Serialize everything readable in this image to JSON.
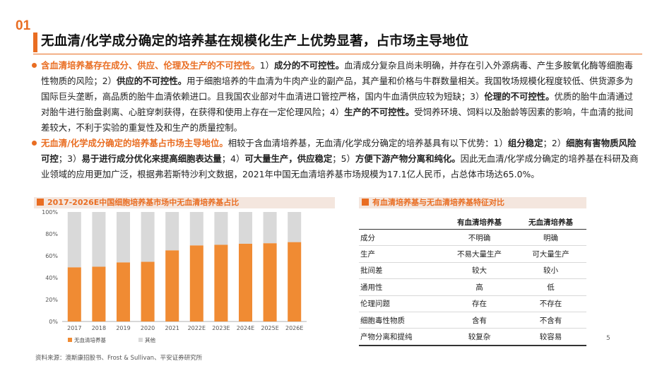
{
  "section_number": "01",
  "title": "无血清/化学成分确定的培养基在规模化生产上优势显著，占市场主导地位",
  "paragraph1": {
    "lead": "含血清培养基存在成分、供应、伦理及生产的不可控性。",
    "n1": "1）",
    "h1": "成分的不可控性。",
    "t1": "血清成分复杂且尚未明确，并存在引入外源病毒、产生多胺氧化酶等细胞毒性物质的风险；2）",
    "h2": "供应的不可控性。",
    "t2": "用于细胞培养的牛血清为牛肉产业的副产品，其产量和价格与牛群数量相关。我国牧场规模化程度较低、供货源多为国际巨头垄断，高品质的胎牛血清依赖进口。且我国农业部对牛血清进口管控严格，国内牛血清供应较为短缺；3）",
    "h3": "伦理的不可控性。",
    "t3": "优质的胎牛血清通过对胎牛进行胎盘剥离、心脏穿刺获得，在获得和使用上存在一定伦理风险；4）",
    "h4": "生产的不可控性。",
    "t4": "受饲养环境、饲料以及胎龄等因素的影响，牛血清的批间差较大，不利于实验的重复性及和生产的质量控制。"
  },
  "paragraph2": {
    "lead": "无血清/化学成分确定的培养基占市场主导地位。",
    "t0": "相较于含血清培养基，无血清/化学成分确定的培养基具有以下优势：1）",
    "h1": "组分稳定",
    "t1": "；2）",
    "h2": "细胞有害物质风险可控",
    "t2": "；3）",
    "h3": "易于进行成分优化来提高细胞表达量",
    "t3": "；4）",
    "h4": "可大量生产，供应稳定",
    "t4": "；5）",
    "h5": "方便下游产物分离和纯化。",
    "t5": "因此无血清/化学成分确定的培养基在科研及商业领域的应用更加广泛，根据弗若斯特沙利文数据，2021年中国无血清培养基市场规模为17.1亿人民币，占总体市场达65.0%。"
  },
  "chart_heading": "2017-2026E中国细胞培养基市场中无血清培养基占比",
  "table_heading": "有血清培养基与无血清培养基特征对比",
  "chart_data": {
    "type": "bar",
    "stacked": true,
    "categories": [
      "2017",
      "2018",
      "2019",
      "2020",
      "2021",
      "2022E",
      "2023E",
      "2024E",
      "2025E",
      "2026E"
    ],
    "series": [
      {
        "name": "无血清培养基",
        "color": "#f08b33",
        "values": [
          49.5,
          50,
          54,
          54.5,
          65,
          69.5,
          70,
          71,
          71.5,
          72.5
        ]
      },
      {
        "name": "其他",
        "color": "#d9d9d9",
        "values": [
          50.5,
          50,
          46,
          45.5,
          35,
          30.5,
          30,
          29,
          28.5,
          27.5
        ]
      }
    ],
    "ylim": [
      0,
      100
    ],
    "yticks": [
      "0%",
      "20%",
      "40%",
      "60%",
      "80%",
      "100%"
    ],
    "legend_position": "bottom-left"
  },
  "table": {
    "headers": [
      "",
      "有血清培养基",
      "无血清培养基"
    ],
    "rows": [
      [
        "成分",
        "不明确",
        "明确"
      ],
      [
        "生产",
        "不易大量生产",
        "可大量生产"
      ],
      [
        "批间差",
        "较大",
        "较小"
      ],
      [
        "通用性",
        "高",
        "低"
      ],
      [
        "伦理问题",
        "存在",
        "不存在"
      ],
      [
        "细胞毒性物质",
        "含有",
        "不含有"
      ],
      [
        "产物分离和提纯",
        "较复杂",
        "较容易"
      ]
    ]
  },
  "source": "资料来源：澳斯康招股书、Frost & Sullivan、平安证券研究所",
  "page_number": "5",
  "colors": {
    "accent": "#e96d22",
    "bar_main": "#f08b33",
    "bar_other": "#d9d9d9"
  }
}
